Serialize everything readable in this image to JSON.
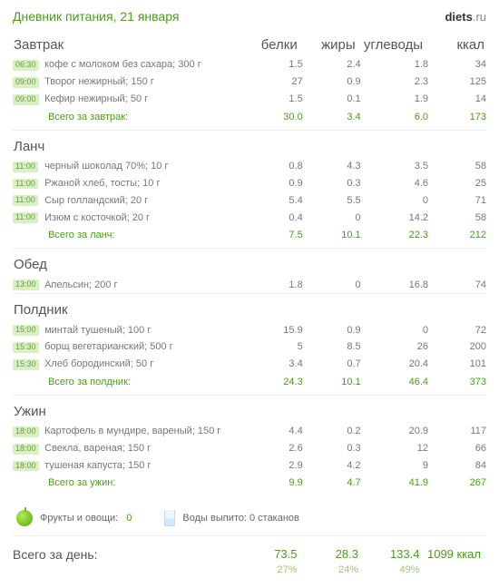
{
  "title": "Дневник питания, 21 января",
  "logo_bold": "diets",
  "logo_tld": ".ru",
  "columns": [
    "белки",
    "жиры",
    "углеводы",
    "ккал"
  ],
  "meals": [
    {
      "name": "Завтрак",
      "rows": [
        {
          "time": "06:30",
          "food": "кофе с молоком без сахара; 300 г",
          "p": "1.5",
          "f": "2.4",
          "c": "1.8",
          "k": "34"
        },
        {
          "time": "09:00",
          "food": "Творог нежирный; 150 г",
          "p": "27",
          "f": "0.9",
          "c": "2.3",
          "k": "125"
        },
        {
          "time": "09:00",
          "food": "Кефир нежирный; 50 г",
          "p": "1.5",
          "f": "0.1",
          "c": "1.9",
          "k": "14"
        }
      ],
      "subtotal_label": "Всего за завтрак:",
      "subtotal": {
        "p": "30.0",
        "f": "3.4",
        "c": "6.0",
        "k": "173"
      }
    },
    {
      "name": "Ланч",
      "rows": [
        {
          "time": "11:00",
          "food": "черный шоколад 70%; 10 г",
          "p": "0.8",
          "f": "4.3",
          "c": "3.5",
          "k": "58"
        },
        {
          "time": "11:00",
          "food": "Ржаной хлеб, тосты; 10 г",
          "p": "0.9",
          "f": "0.3",
          "c": "4.6",
          "k": "25"
        },
        {
          "time": "11:00",
          "food": "Сыр голландский; 20 г",
          "p": "5.4",
          "f": "5.5",
          "c": "0",
          "k": "71"
        },
        {
          "time": "11:00",
          "food": "Изюм с косточкой; 20 г",
          "p": "0.4",
          "f": "0",
          "c": "14.2",
          "k": "58"
        }
      ],
      "subtotal_label": "Всего за ланч:",
      "subtotal": {
        "p": "7.5",
        "f": "10.1",
        "c": "22.3",
        "k": "212"
      }
    },
    {
      "name": "Обед",
      "rows": [
        {
          "time": "13:00",
          "food": "Апельсин; 200 г",
          "p": "1.8",
          "f": "0",
          "c": "16.8",
          "k": "74"
        }
      ],
      "subtotal_label": "",
      "subtotal": null
    },
    {
      "name": "Полдник",
      "rows": [
        {
          "time": "15:00",
          "food": "минтай тушеный; 100 г",
          "p": "15.9",
          "f": "0.9",
          "c": "0",
          "k": "72"
        },
        {
          "time": "15:30",
          "food": "борщ вегетарианский; 500 г",
          "p": "5",
          "f": "8.5",
          "c": "26",
          "k": "200"
        },
        {
          "time": "15:30",
          "food": "Хлеб бородинский; 50 г",
          "p": "3.4",
          "f": "0.7",
          "c": "20.4",
          "k": "101"
        }
      ],
      "subtotal_label": "Всего за полдник:",
      "subtotal": {
        "p": "24.3",
        "f": "10.1",
        "c": "46.4",
        "k": "373"
      }
    },
    {
      "name": "Ужин",
      "rows": [
        {
          "time": "18:00",
          "food": "Картофель в мундире, вареный; 150 г",
          "p": "4.4",
          "f": "0.2",
          "c": "20.9",
          "k": "117"
        },
        {
          "time": "18:00",
          "food": "Свекла, вареная; 150 г",
          "p": "2.6",
          "f": "0.3",
          "c": "12",
          "k": "66"
        },
        {
          "time": "18:00",
          "food": "тушеная капуста; 150 г",
          "p": "2.9",
          "f": "4.2",
          "c": "9",
          "k": "84"
        }
      ],
      "subtotal_label": "Всего за ужин:",
      "subtotal": {
        "p": "9.9",
        "f": "4.7",
        "c": "41.9",
        "k": "267"
      }
    }
  ],
  "footer": {
    "fruits_label": "Фрукты и овощи:",
    "fruits_value": "0",
    "water_label": "Воды выпито: 0 стаканов"
  },
  "day_total": {
    "label": "Всего за день:",
    "values": {
      "p": "73.5",
      "f": "28.3",
      "c": "133.4",
      "k": "1099 ккал"
    },
    "pct": {
      "p": "27%",
      "f": "24%",
      "c": "49%",
      "k": ""
    }
  }
}
